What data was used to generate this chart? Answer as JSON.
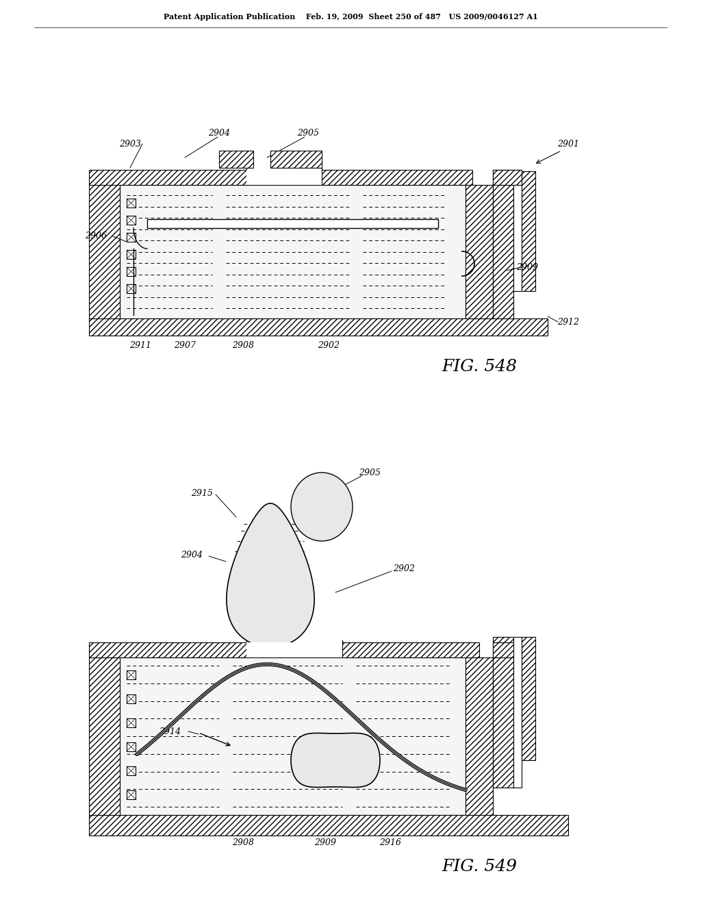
{
  "bg_color": "#ffffff",
  "header_text": "Patent Application Publication    Feb. 19, 2009  Sheet 250 of 487   US 2009/0046127 A1",
  "fig548_label": "FIG. 548",
  "fig549_label": "FIG. 549"
}
